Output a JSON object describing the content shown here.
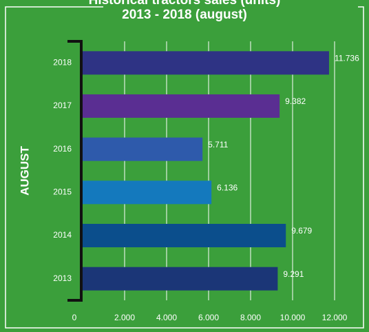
{
  "chart_data": {
    "type": "bar",
    "orientation": "horizontal",
    "title": "Historical tractors sales (units)",
    "subtitle": "2013 - 2018 (august)",
    "y_label": "AUGUST",
    "categories": [
      "2018",
      "2017",
      "2016",
      "2015",
      "2014",
      "2013"
    ],
    "values": [
      11736,
      9382,
      5711,
      6136,
      9679,
      9291
    ],
    "value_labels": [
      "11.736",
      "9.382",
      "5.711",
      "6.136",
      "9.679",
      "9.291"
    ],
    "colors": [
      "#2e3384",
      "#5a2e92",
      "#2e5aab",
      "#1479bd",
      "#0b4e8c",
      "#1b3677"
    ],
    "xlim": [
      0,
      12000
    ],
    "xticks": [
      0,
      {
        "value": 2000,
        "label": "2.000"
      },
      {
        "value": 4000,
        "label": "4.000"
      },
      {
        "value": 6000,
        "label": "6.000"
      },
      {
        "value": 8000,
        "label": "8.000"
      },
      {
        "value": 10000,
        "label": "10.000"
      },
      {
        "value": 12000,
        "label": "12.000"
      }
    ],
    "grid": true
  }
}
